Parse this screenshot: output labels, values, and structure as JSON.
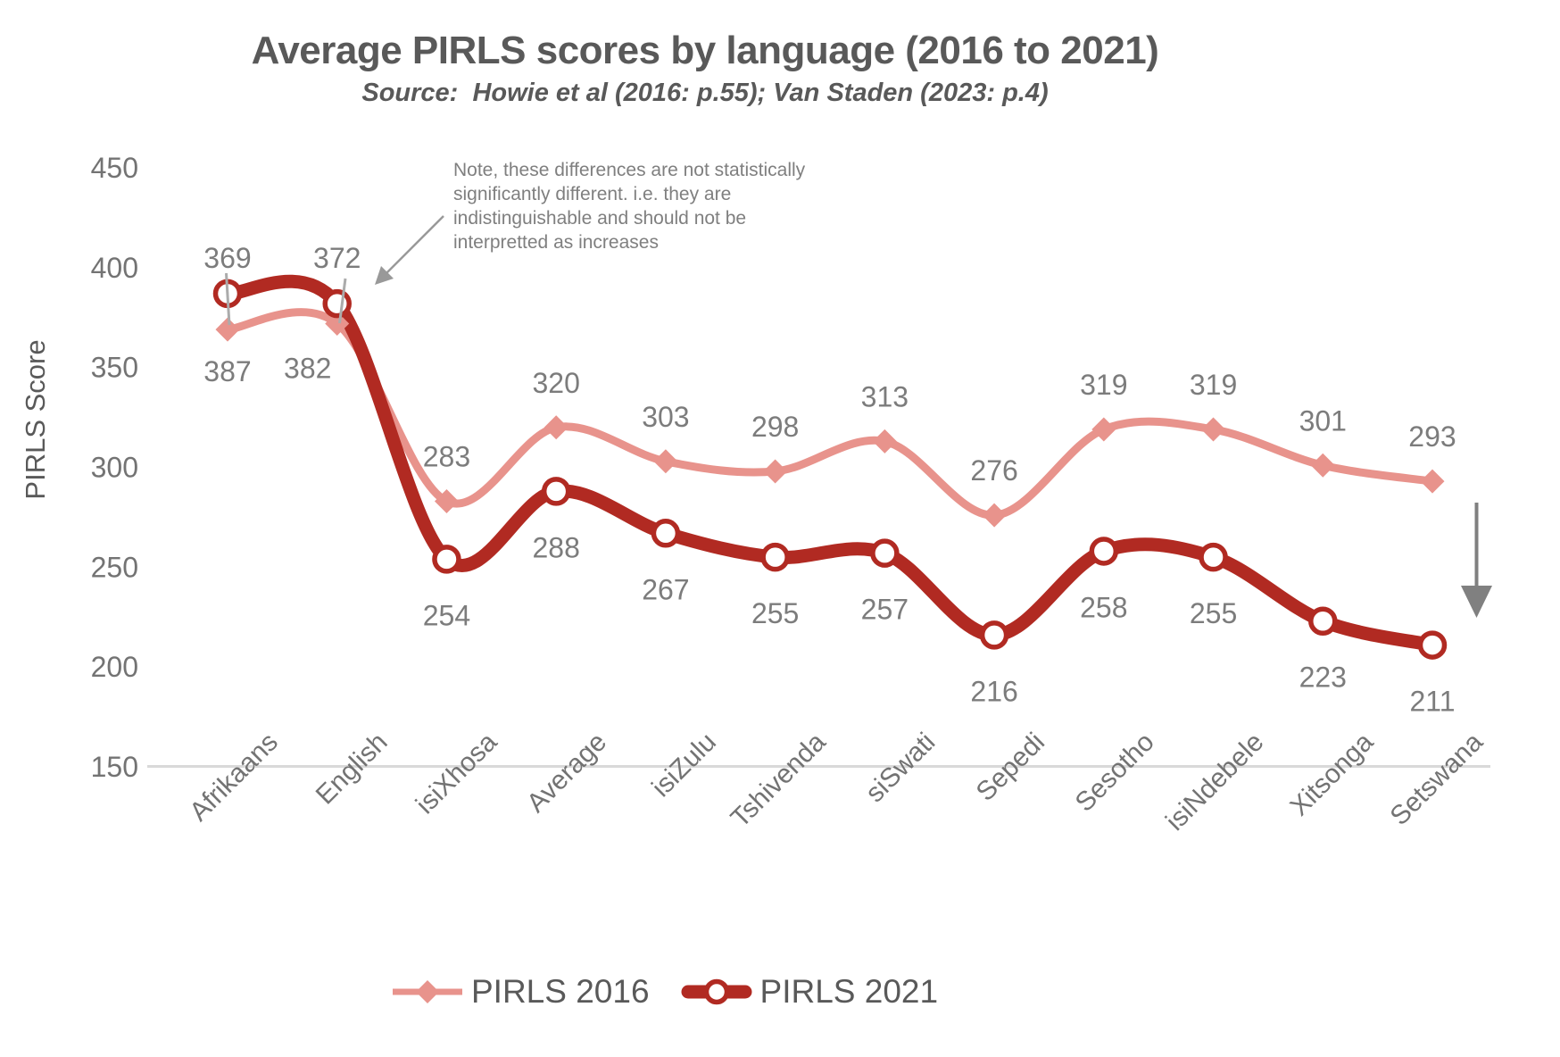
{
  "chart_data": {
    "type": "line",
    "title": "Average PIRLS scores by language (2016 to 2021)",
    "subtitle": "Source:  Howie et al (2016: p.55); Van Staden (2023: p.4)",
    "categories": [
      "Afrikaans",
      "English",
      "isiXhosa",
      "Average",
      "isiZulu",
      "Tshivenda",
      "siSwati",
      "Sepedi",
      "Sesotho",
      "isiNdebele",
      "Xitsonga",
      "Setswana"
    ],
    "series": [
      {
        "name": "PIRLS 2016",
        "color": "#E8938C",
        "marker": "diamond",
        "values": [
          369,
          372,
          283,
          320,
          303,
          298,
          313,
          276,
          319,
          319,
          301,
          293
        ]
      },
      {
        "name": "PIRLS 2021",
        "color": "#B12A22",
        "marker": "open-circle",
        "values": [
          387,
          382,
          254,
          288,
          267,
          255,
          257,
          216,
          258,
          255,
          223,
          211
        ]
      }
    ],
    "xlabel": "",
    "ylabel": "PIRLS Score",
    "ylim": [
      150,
      450
    ],
    "yticks": [
      150,
      200,
      250,
      300,
      350,
      400,
      450
    ],
    "grid": false,
    "legend_position": "bottom",
    "annotation_lines": [
      "Note, these differences are not statistically",
      "significantly different. i.e. they are",
      "indistinguishable and should not be",
      "interpretted as increases"
    ],
    "label_color": "#7C7C7C",
    "axis_color": "#D9D9D9",
    "arrow_color": "#808080"
  }
}
